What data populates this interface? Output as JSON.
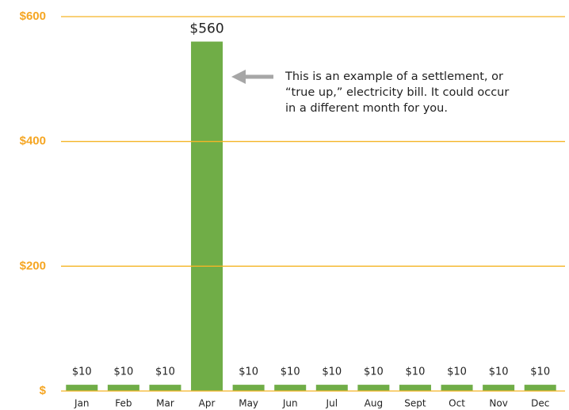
{
  "chart_data": {
    "type": "bar",
    "categories": [
      "Jan",
      "Feb",
      "Mar",
      "Apr",
      "May",
      "Jun",
      "Jul",
      "Aug",
      "Sept",
      "Oct",
      "Nov",
      "Dec"
    ],
    "values": [
      10,
      10,
      10,
      560,
      10,
      10,
      10,
      10,
      10,
      10,
      10,
      10
    ],
    "value_labels": [
      "$10",
      "$10",
      "$10",
      "$560",
      "$10",
      "$10",
      "$10",
      "$10",
      "$10",
      "$10",
      "$10",
      "$10"
    ],
    "color": "#70ad47",
    "ylim": [
      0,
      600
    ],
    "yticks": [
      {
        "value": 0,
        "label": "$"
      },
      {
        "value": 200,
        "label": "$200"
      },
      {
        "value": 400,
        "label": "$400"
      },
      {
        "value": 600,
        "label": "$600"
      }
    ],
    "grid": true,
    "grid_color": "#f5b526",
    "annotation": [
      "This is an example of a settlement, or",
      "“true up,” electricity bill. It could occur",
      "in a different month for you."
    ]
  }
}
